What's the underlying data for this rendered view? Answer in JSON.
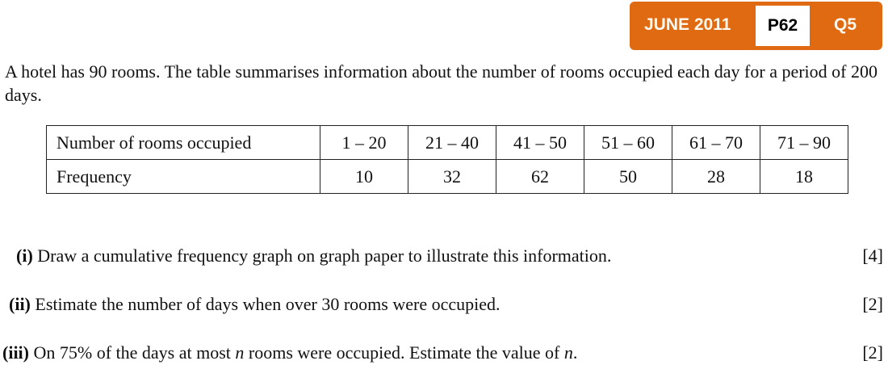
{
  "badge": {
    "date": "JUNE 2011",
    "paper": "P62",
    "question": "Q5",
    "color": "#e06a12"
  },
  "intro": "A hotel has 90 rooms. The table summarises information about the number of rooms occupied each day for a period of 200 days.",
  "table": {
    "row_headers": [
      "Number of rooms occupied",
      "Frequency"
    ],
    "classes": [
      "1 – 20",
      "21 – 40",
      "41 – 50",
      "51 – 60",
      "61 – 70",
      "71 – 90"
    ],
    "frequencies": [
      "10",
      "32",
      "62",
      "50",
      "28",
      "18"
    ]
  },
  "parts": [
    {
      "label": "(i)",
      "text": "Draw a cumulative frequency graph on graph paper to illustrate this information.",
      "marks": "[4]"
    },
    {
      "label": "(ii)",
      "text": "Estimate the number of days when over 30 rooms were occupied.",
      "marks": "[2]"
    },
    {
      "label": "(iii)",
      "text_before": "On 75% of the days at most ",
      "var": "n",
      "text_mid": " rooms were occupied. Estimate the value of ",
      "var2": "n",
      "text_end": ".",
      "marks": "[2]"
    }
  ]
}
